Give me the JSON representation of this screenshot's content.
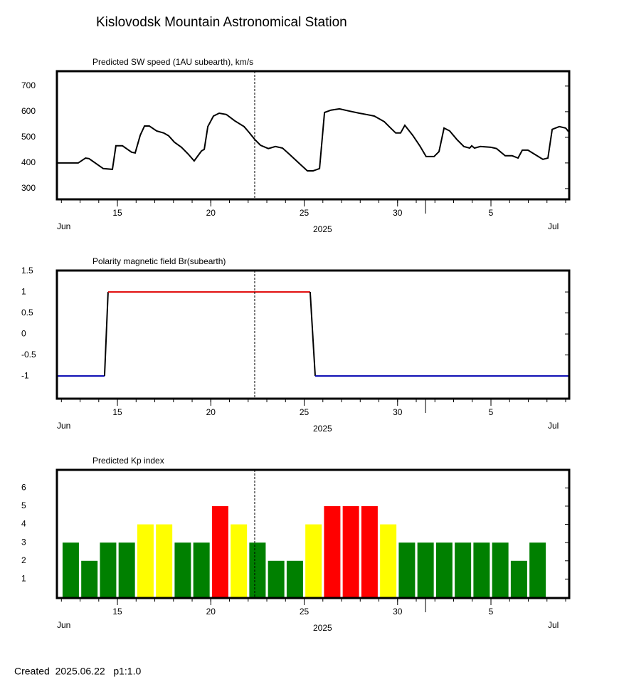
{
  "title": "Kislovodsk Mountain Astronomical Station",
  "footer": "Created  2025.06.22   p1:1.0",
  "chart_data": [
    {
      "type": "line",
      "title": "Predicted SW speed (1AU subearth), km/s",
      "color": "#000000",
      "x": [
        11.76,
        12.9,
        13.29,
        13.48,
        14.24,
        14.73,
        14.92,
        15.27,
        15.76,
        15.95,
        16.22,
        16.45,
        16.71,
        17.1,
        17.48,
        17.74,
        18.05,
        18.43,
        18.77,
        19.11,
        19.5,
        19.65,
        19.84,
        20.14,
        20.45,
        20.83,
        21.29,
        21.78,
        22.05,
        22.35,
        22.66,
        23.08,
        23.46,
        23.84,
        24.22,
        24.71,
        25.17,
        25.48,
        25.82,
        26.09,
        26.43,
        26.89,
        27.38,
        27.95,
        28.33,
        28.75,
        29.29,
        29.59,
        29.9,
        30.16,
        30.39,
        30.81,
        31.19,
        31.53,
        31.95,
        32.22,
        32.49,
        32.79,
        33.17,
        33.55,
        33.86,
        33.97,
        34.12,
        34.43,
        35.0,
        35.3,
        35.76,
        36.14,
        36.45,
        36.68,
        36.98,
        37.29,
        37.78,
        38.05,
        38.28,
        38.66,
        39.0,
        39.19
      ],
      "values": [
        400,
        400,
        419,
        417,
        378,
        375,
        467,
        467,
        442,
        439,
        508,
        544,
        544,
        525,
        517,
        506,
        481,
        461,
        436,
        408,
        447,
        453,
        542,
        583,
        594,
        589,
        564,
        542,
        519,
        492,
        469,
        456,
        464,
        458,
        433,
        400,
        369,
        369,
        378,
        597,
        606,
        611,
        603,
        594,
        589,
        583,
        561,
        539,
        517,
        517,
        547,
        508,
        467,
        425,
        425,
        444,
        536,
        525,
        492,
        464,
        458,
        467,
        458,
        464,
        461,
        456,
        428,
        428,
        419,
        450,
        450,
        436,
        414,
        419,
        531,
        542,
        536,
        519
      ],
      "xlim": [
        11.76,
        39.19
      ],
      "xticks": [
        15,
        20,
        25,
        30,
        {
          "value": 35,
          "label": "5"
        }
      ],
      "xminor": [
        12,
        13,
        14,
        15,
        16,
        17,
        18,
        19,
        20,
        21,
        22,
        23,
        24,
        25,
        26,
        27,
        28,
        29,
        30,
        31,
        32,
        33,
        34,
        35,
        36,
        37,
        38,
        39
      ],
      "month_boundary": 31.5,
      "marker_x": 22.35,
      "ylim": [
        258,
        758
      ],
      "yticks": [
        300,
        400,
        500,
        600,
        700
      ],
      "month_labels": [
        "Jun",
        "Jul"
      ],
      "year_label": "2025"
    },
    {
      "type": "polarity",
      "title": "Polarity magnetic field  Br(subearth)",
      "color": "#000000",
      "color_positive": "#e00000",
      "color_negative": "#0000b0",
      "x": [
        11.76,
        14.31,
        14.5,
        25.32,
        25.59,
        39.19
      ],
      "values": [
        -1,
        -1,
        1,
        1,
        -1,
        -1
      ],
      "xlim": [
        11.76,
        39.19
      ],
      "xticks": [
        15,
        20,
        25,
        30,
        {
          "value": 35,
          "label": "5"
        }
      ],
      "xminor": [
        12,
        13,
        14,
        15,
        16,
        17,
        18,
        19,
        20,
        21,
        22,
        23,
        24,
        25,
        26,
        27,
        28,
        29,
        30,
        31,
        32,
        33,
        34,
        35,
        36,
        37,
        38,
        39
      ],
      "month_boundary": 31.5,
      "marker_x": 22.35,
      "ylim": [
        -1.54,
        1.51
      ],
      "yticks": [
        1.5,
        1,
        0.5,
        0,
        -0.5,
        -1
      ],
      "month_labels": [
        "Jun",
        "Jul"
      ],
      "year_label": "2025"
    },
    {
      "type": "bar",
      "title": "Predicted Kp index",
      "x": [
        12.5,
        13.5,
        14.5,
        15.5,
        16.5,
        17.5,
        18.5,
        19.5,
        20.5,
        21.5,
        22.5,
        23.5,
        24.5,
        25.5,
        26.5,
        27.5,
        28.5,
        29.5,
        30.5,
        31.5,
        32.5,
        33.5,
        34.5,
        35.5,
        36.5,
        37.5
      ],
      "values": [
        3,
        2,
        3,
        3,
        4,
        4,
        3,
        3,
        5,
        4,
        3,
        2,
        2,
        4,
        5,
        5,
        5,
        4,
        3,
        3,
        3,
        3,
        3,
        3,
        2,
        3
      ],
      "colors": [
        "#008000",
        "#008000",
        "#008000",
        "#008000",
        "#ffff00",
        "#ffff00",
        "#008000",
        "#008000",
        "#ff0000",
        "#ffff00",
        "#008000",
        "#008000",
        "#008000",
        "#ffff00",
        "#ff0000",
        "#ff0000",
        "#ff0000",
        "#ffff00",
        "#008000",
        "#008000",
        "#008000",
        "#008000",
        "#008000",
        "#008000",
        "#008000",
        "#008000"
      ],
      "xlim": [
        11.76,
        39.19
      ],
      "xticks": [
        15,
        20,
        25,
        30,
        {
          "value": 35,
          "label": "5"
        }
      ],
      "xminor": [
        12,
        13,
        14,
        15,
        16,
        17,
        18,
        19,
        20,
        21,
        22,
        23,
        24,
        25,
        26,
        27,
        28,
        29,
        30,
        31,
        32,
        33,
        34,
        35,
        36,
        37,
        38,
        39
      ],
      "month_boundary": 31.5,
      "marker_x": 22.35,
      "ylim": [
        -0.04,
        6.99
      ],
      "yticks": [
        1,
        2,
        3,
        4,
        5,
        6
      ],
      "month_labels": [
        "Jun",
        "Jul"
      ],
      "year_label": "2025"
    }
  ]
}
